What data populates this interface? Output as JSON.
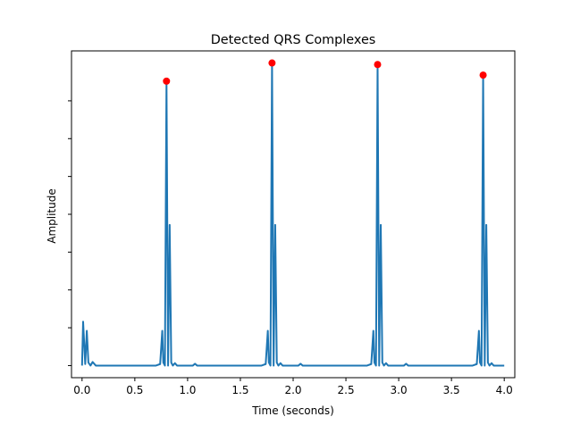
{
  "chart_data": {
    "type": "line",
    "title": "Detected QRS Complexes",
    "xlabel": "Time (seconds)",
    "ylabel": "Amplitude",
    "xlim": [
      -0.1,
      4.1
    ],
    "ylim": [
      -0.04,
      1.04
    ],
    "x_ticks": [
      0.0,
      0.5,
      1.0,
      1.5,
      2.0,
      2.5,
      3.0,
      3.5,
      4.0
    ],
    "x_tick_labels": [
      "0.0",
      "0.5",
      "1.0",
      "1.5",
      "2.0",
      "2.5",
      "3.0",
      "3.5",
      "4.0"
    ],
    "y_ticks": [
      0.0,
      0.125,
      0.25,
      0.375,
      0.5,
      0.625,
      0.75,
      0.875
    ],
    "y_tick_labels": [
      "",
      "",
      "",
      "",
      "",
      "",
      "",
      ""
    ],
    "grid": false,
    "legend": "none",
    "colors": {
      "line": "#1f77b4",
      "peaks": "#ff0000"
    },
    "series": [
      {
        "type": "line",
        "x": [
          0.0,
          0.01,
          0.03,
          0.045,
          0.06,
          0.08,
          0.1,
          0.13,
          0.16,
          0.2,
          0.3,
          0.4,
          0.5,
          0.6,
          0.7,
          0.74,
          0.76,
          0.77,
          0.785,
          0.8,
          0.815,
          0.83,
          0.845,
          0.86,
          0.88,
          0.9,
          0.95,
          1.0,
          1.05,
          1.07,
          1.09,
          1.11,
          1.2,
          1.3,
          1.4,
          1.5,
          1.6,
          1.7,
          1.74,
          1.76,
          1.77,
          1.785,
          1.8,
          1.815,
          1.83,
          1.845,
          1.86,
          1.88,
          1.9,
          1.95,
          2.0,
          2.05,
          2.07,
          2.09,
          2.11,
          2.2,
          2.3,
          2.4,
          2.5,
          2.6,
          2.7,
          2.74,
          2.76,
          2.77,
          2.785,
          2.8,
          2.815,
          2.83,
          2.845,
          2.86,
          2.88,
          2.9,
          2.95,
          3.0,
          3.05,
          3.07,
          3.09,
          3.11,
          3.2,
          3.3,
          3.4,
          3.5,
          3.6,
          3.7,
          3.74,
          3.76,
          3.77,
          3.785,
          3.8,
          3.815,
          3.83,
          3.845,
          3.86,
          3.88,
          3.9,
          3.95,
          4.0
        ],
        "y": [
          0.0,
          0.145,
          0.005,
          0.115,
          0.01,
          0.0,
          0.012,
          0.0,
          0.0,
          0.0,
          0.0,
          0.0,
          0.0,
          0.0,
          0.0,
          0.005,
          0.115,
          0.01,
          0.0,
          0.94,
          0.0,
          0.465,
          0.01,
          0.0,
          0.008,
          0.0,
          0.0,
          0.0,
          0.0,
          0.006,
          0.0,
          0.0,
          0.0,
          0.0,
          0.0,
          0.0,
          0.0,
          0.0,
          0.005,
          0.115,
          0.01,
          0.0,
          1.0,
          0.0,
          0.465,
          0.01,
          0.0,
          0.008,
          0.0,
          0.0,
          0.0,
          0.0,
          0.006,
          0.0,
          0.0,
          0.0,
          0.0,
          0.0,
          0.0,
          0.0,
          0.0,
          0.005,
          0.115,
          0.01,
          0.0,
          0.995,
          0.0,
          0.465,
          0.01,
          0.0,
          0.008,
          0.0,
          0.0,
          0.0,
          0.0,
          0.006,
          0.0,
          0.0,
          0.0,
          0.0,
          0.0,
          0.0,
          0.0,
          0.0,
          0.005,
          0.115,
          0.01,
          0.0,
          0.96,
          0.0,
          0.465,
          0.01,
          0.0,
          0.008,
          0.0,
          0.0,
          0.0
        ]
      },
      {
        "type": "scatter",
        "x": [
          0.8,
          1.8,
          2.8,
          3.8
        ],
        "y": [
          0.94,
          1.0,
          0.995,
          0.96
        ]
      }
    ]
  }
}
